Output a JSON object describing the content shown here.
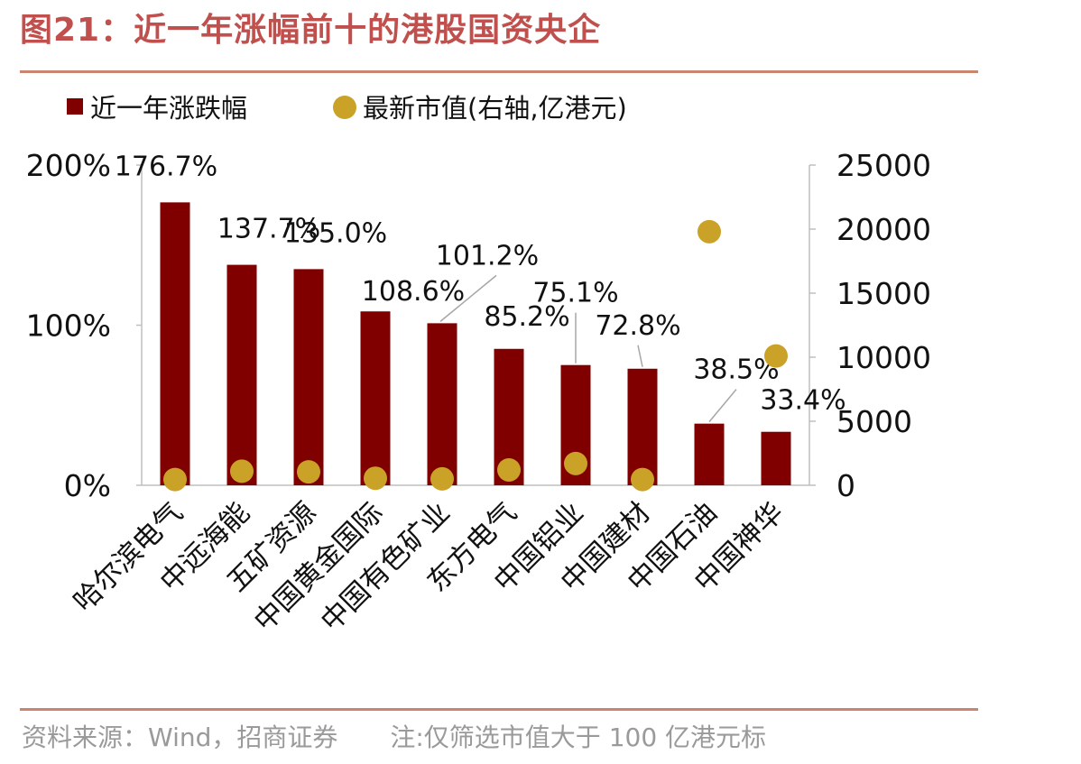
{
  "header": {
    "title": "图21：近一年涨幅前十的港股国资央企"
  },
  "footer": {
    "source": "资料来源：Wind，招商证券",
    "note": "注:仅筛选市值大于 100 亿港元标"
  },
  "chart_data": {
    "type": "bar",
    "categories": [
      "哈尔滨电气",
      "中远海能",
      "五矿资源",
      "中国黄金国际",
      "中国有色矿业",
      "东方电气",
      "中国铝业",
      "中国建材",
      "中国石油",
      "中国神华"
    ],
    "series": [
      {
        "name": "近一年涨跌幅",
        "type": "bar",
        "axis": "left",
        "color": "#800000",
        "values": [
          176.7,
          137.7,
          135.0,
          108.6,
          101.2,
          85.2,
          75.1,
          72.8,
          38.5,
          33.4
        ],
        "labels": [
          "176.7%",
          "137.7%",
          "135.0%",
          "108.6%",
          "101.2%",
          "85.2%",
          "75.1%",
          "72.8%",
          "38.5%",
          "33.4%"
        ]
      },
      {
        "name": "最新市值(右轴,亿港元)",
        "type": "scatter",
        "axis": "right",
        "color": "#c9a227",
        "values": [
          450,
          1100,
          1050,
          550,
          500,
          1200,
          1700,
          450,
          19800,
          10100
        ]
      }
    ],
    "y_left": {
      "ylim": [
        0,
        200
      ],
      "ticks": [
        "0%",
        "100%",
        "200%"
      ]
    },
    "y_right": {
      "ylim": [
        0,
        25000
      ],
      "ticks": [
        "0",
        "5000",
        "10000",
        "15000",
        "20000",
        "25000"
      ]
    },
    "legend": "top-left",
    "grid": false
  }
}
